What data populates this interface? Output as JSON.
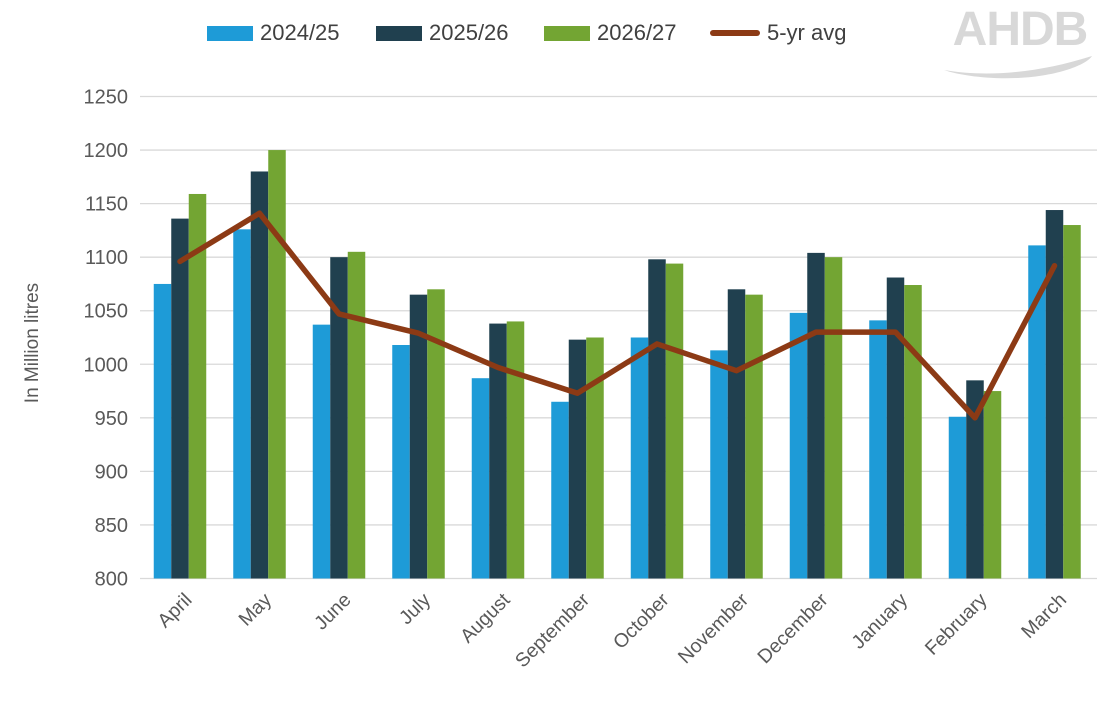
{
  "logo": {
    "text": "AHDB",
    "color": "#d8d8d8"
  },
  "legend": [
    {
      "label": "2024/25",
      "color": "#1e9bd7",
      "swatch": "bar"
    },
    {
      "label": "2025/26",
      "color": "#20404f",
      "swatch": "bar"
    },
    {
      "label": "2026/27",
      "color": "#73a533",
      "swatch": "bar"
    },
    {
      "label": "5-yr avg",
      "color": "#8c3a15",
      "swatch": "line"
    }
  ],
  "axis": {
    "y_title": "In Million litres"
  },
  "chart_data": {
    "type": "bar",
    "title": "",
    "xlabel": "",
    "ylabel": "In Million litres",
    "ylim": [
      800,
      1250
    ],
    "ytick_step": 50,
    "grid": true,
    "legend_position": "top",
    "categories": [
      "April",
      "May",
      "June",
      "July",
      "August",
      "September",
      "October",
      "November",
      "December",
      "January",
      "February",
      "March"
    ],
    "series": [
      {
        "name": "2024/25",
        "type": "bar",
        "color": "#1e9bd7",
        "values": [
          1075,
          1126,
          1037,
          1018,
          987,
          965,
          1025,
          1013,
          1048,
          1041,
          951,
          1111
        ]
      },
      {
        "name": "2025/26",
        "type": "bar",
        "color": "#20404f",
        "values": [
          1136,
          1180,
          1100,
          1065,
          1038,
          1023,
          1098,
          1070,
          1104,
          1081,
          985,
          1144
        ]
      },
      {
        "name": "2026/27",
        "type": "bar",
        "color": "#73a533",
        "values": [
          1159,
          1200,
          1105,
          1070,
          1040,
          1025,
          1094,
          1065,
          1100,
          1074,
          975,
          1130
        ]
      },
      {
        "name": "5-yr avg",
        "type": "line",
        "color": "#8c3a15",
        "values": [
          1096,
          1141,
          1047,
          1029,
          997,
          973,
          1019,
          994,
          1030,
          1030,
          950,
          1092
        ]
      }
    ],
    "colors": {
      "gridline": "#d9d9d9",
      "tick_text": "#595959",
      "legend_text": "#404040"
    }
  }
}
